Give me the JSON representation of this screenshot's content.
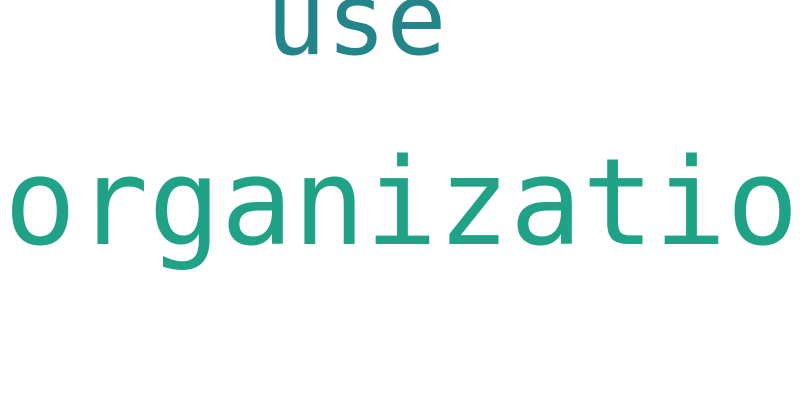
{
  "words": [
    {
      "text": "use",
      "color": "#23848a"
    },
    {
      "text": "organization",
      "color": "#20a287"
    }
  ]
}
